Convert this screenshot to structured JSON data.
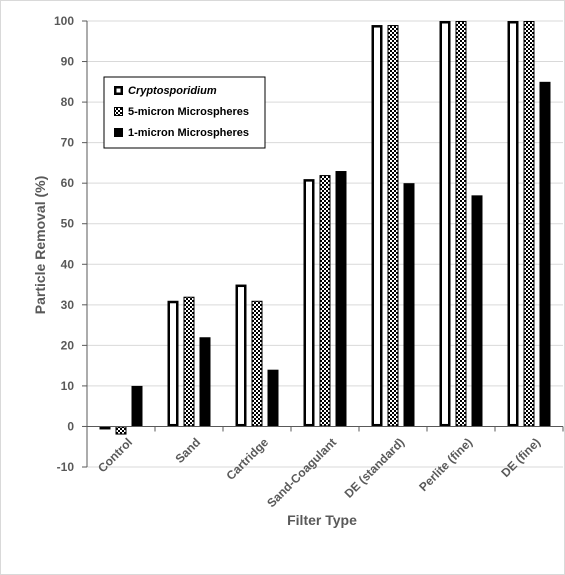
{
  "chart_data": {
    "type": "bar",
    "categories": [
      "Control",
      "Sand",
      "Cartridge",
      "Sand-Coagulant",
      "DE (standard)",
      "Perlite (fine)",
      "DE (fine)"
    ],
    "series": [
      {
        "name": "Cryptosporidium",
        "values": [
          -0.5,
          31,
          35,
          61,
          99,
          100,
          100
        ]
      },
      {
        "name": "5-micron Microspheres",
        "values": [
          -2,
          32,
          31,
          62,
          99,
          100,
          100
        ]
      },
      {
        "name": "1-micron Microspheres",
        "values": [
          10,
          22,
          14,
          63,
          60,
          57,
          85
        ]
      }
    ],
    "title": "",
    "xlabel": "Filter Type",
    "ylabel": "Particle Removal (%)",
    "ylim": [
      -10,
      100
    ],
    "yticks": [
      "-10",
      "0",
      "10",
      "20",
      "30",
      "40",
      "50",
      "60",
      "70",
      "80",
      "90",
      "100"
    ],
    "grid": true,
    "legend_position": "top-left"
  }
}
